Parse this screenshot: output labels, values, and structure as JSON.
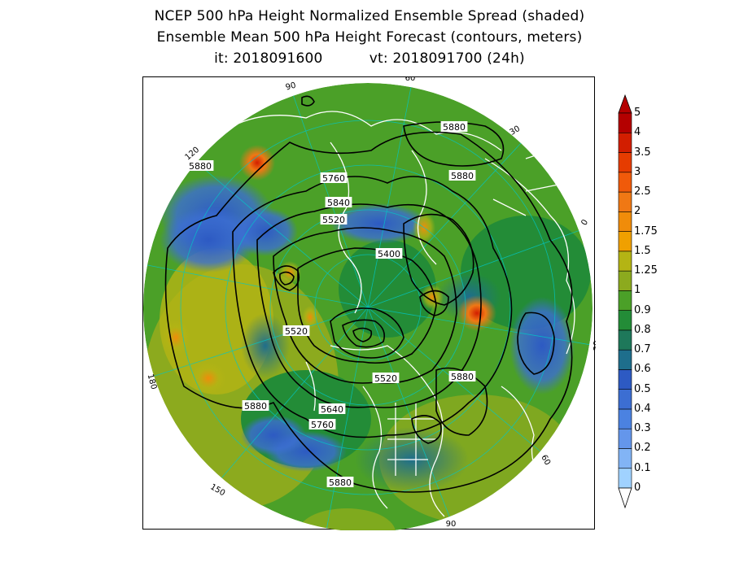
{
  "title": {
    "line1": "NCEP 500 hPa Height Normalized Ensemble Spread (shaded)",
    "line2": "Ensemble Mean 500 hPa Height Forecast (contours, meters)",
    "it_label": "it: 2018091600",
    "vt_label": "vt: 2018091700 (24h)"
  },
  "map": {
    "projection": "polar stereographic, north pole",
    "longitude_labels": [
      "60",
      "30",
      "0",
      "30",
      "60",
      "90",
      "120",
      "150",
      "180",
      "150",
      "120",
      "90"
    ],
    "contour_labels": [
      "5880",
      "5880",
      "5880",
      "5760",
      "5840",
      "5520",
      "5400",
      "5520",
      "5520",
      "5880",
      "5640",
      "5760",
      "5880",
      "5880"
    ],
    "colors": {
      "coastline": "#ffffff",
      "grid": "#00c8c8",
      "contour": "#000000"
    }
  },
  "colorbar": {
    "levels": [
      "0",
      "0.1",
      "0.2",
      "0.3",
      "0.4",
      "0.5",
      "0.6",
      "0.7",
      "0.8",
      "0.9",
      "1",
      "1.25",
      "1.5",
      "1.75",
      "2",
      "2.5",
      "3",
      "3.5",
      "4",
      "5"
    ],
    "colors": [
      "#a0d2ff",
      "#82b4f5",
      "#6496eb",
      "#4b82e1",
      "#3c6ed2",
      "#2d5ac3",
      "#1e6e8c",
      "#1e785a",
      "#238c37",
      "#4ba028",
      "#8caa1e",
      "#b4b414",
      "#f0a000",
      "#f08c0a",
      "#f07814",
      "#f05a0a",
      "#e63c00",
      "#d21e00",
      "#b40000"
    ]
  }
}
